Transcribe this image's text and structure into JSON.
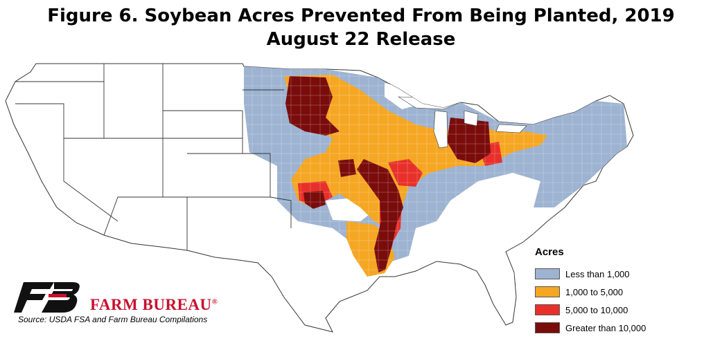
{
  "title": {
    "line1": "Figure 6. Soybean Acres Prevented From Being Planted, 2019",
    "line2": "August 22 Release"
  },
  "legend": {
    "title": "Acres",
    "items": [
      {
        "label": "Less than 1,000",
        "color": "#9db3d1"
      },
      {
        "label": "1,000 to 5,000",
        "color": "#f5a623"
      },
      {
        "label": "5,000 to 10,000",
        "color": "#e8302a"
      },
      {
        "label": "Greater than 10,000",
        "color": "#7a0c0c"
      }
    ]
  },
  "brand": {
    "name": "FARM BUREAU",
    "mark": "®",
    "logo_color": "#111111",
    "accent_color": "#c8102e"
  },
  "source": "Source: USDA FSA and Farm Bureau Compilations"
}
